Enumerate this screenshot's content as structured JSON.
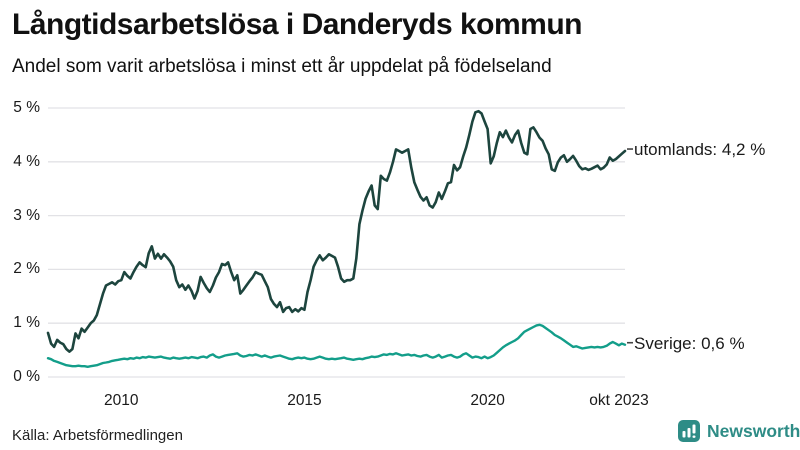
{
  "header": {
    "title": "Långtidsarbetslösa i Danderyds kommun",
    "subtitle": "Andel som varit arbetslösa i minst ett år uppdelat på födelseland"
  },
  "footer": {
    "source": "Källa: Arbetsförmedlingen",
    "brand": "Newsworthy"
  },
  "colors": {
    "utomlands_line": "#1d453e",
    "sverige_line": "#139e8a",
    "grid": "#e2e2e6",
    "text": "#1a1a1a",
    "brand_teal": "#2e8c86"
  },
  "chart_data": {
    "type": "line",
    "title": "Långtidsarbetslösa i Danderyds kommun",
    "subtitle": "Andel som varit arbetslösa i minst ett år uppdelat på födelseland",
    "source": "Källa: Arbetsförmedlingen",
    "x_unit": "monthly, 2008-01 to 2023-10",
    "x_start_year": 2008,
    "months_count": 190,
    "ylim": [
      0,
      5
    ],
    "grid": "horizontal-only",
    "legend_position": "right-end-labels",
    "y_ticks": [
      {
        "label": "0 %",
        "value": 0
      },
      {
        "label": "1 %",
        "value": 1
      },
      {
        "label": "2 %",
        "value": 2
      },
      {
        "label": "3 %",
        "value": 3
      },
      {
        "label": "4 %",
        "value": 4
      },
      {
        "label": "5 %",
        "value": 5
      }
    ],
    "x_ticks": [
      {
        "label": "2010",
        "year": 2010
      },
      {
        "label": "2015",
        "year": 2015
      },
      {
        "label": "2020",
        "year": 2020
      },
      {
        "label": "okt 2023",
        "year": 2023.75
      }
    ],
    "series": [
      {
        "name": "utomlands",
        "label": "utomlands: 4,2 %",
        "last_value": 4.2,
        "color": "#1d453e",
        "stroke_width": 2.6,
        "values": [
          0.82,
          0.62,
          0.56,
          0.69,
          0.64,
          0.61,
          0.52,
          0.47,
          0.52,
          0.81,
          0.72,
          0.9,
          0.84,
          0.92,
          1.0,
          1.05,
          1.15,
          1.35,
          1.55,
          1.7,
          1.73,
          1.76,
          1.72,
          1.78,
          1.8,
          1.95,
          1.88,
          1.83,
          1.95,
          2.05,
          2.13,
          2.08,
          2.04,
          2.3,
          2.43,
          2.2,
          2.29,
          2.2,
          2.28,
          2.22,
          2.15,
          2.05,
          1.8,
          1.67,
          1.72,
          1.62,
          1.7,
          1.6,
          1.46,
          1.6,
          1.86,
          1.75,
          1.65,
          1.58,
          1.7,
          1.85,
          1.95,
          2.1,
          2.08,
          2.13,
          1.95,
          1.8,
          1.89,
          1.55,
          1.62,
          1.7,
          1.78,
          1.85,
          1.95,
          1.92,
          1.9,
          1.78,
          1.67,
          1.45,
          1.36,
          1.3,
          1.39,
          1.21,
          1.28,
          1.3,
          1.21,
          1.26,
          1.22,
          1.28,
          1.25,
          1.58,
          1.8,
          2.05,
          2.17,
          2.26,
          2.17,
          2.22,
          2.28,
          2.25,
          2.22,
          2.05,
          1.83,
          1.77,
          1.8,
          1.8,
          1.83,
          2.2,
          2.84,
          3.09,
          3.31,
          3.45,
          3.56,
          3.19,
          3.12,
          3.74,
          3.68,
          3.65,
          3.8,
          4.0,
          4.23,
          4.2,
          4.17,
          4.2,
          4.23,
          3.89,
          3.62,
          3.48,
          3.35,
          3.28,
          3.34,
          3.19,
          3.15,
          3.25,
          3.43,
          3.31,
          3.45,
          3.6,
          3.62,
          3.94,
          3.84,
          3.9,
          4.1,
          4.27,
          4.5,
          4.75,
          4.92,
          4.94,
          4.9,
          4.75,
          4.61,
          3.97,
          4.1,
          4.35,
          4.55,
          4.46,
          4.58,
          4.45,
          4.36,
          4.5,
          4.58,
          4.35,
          4.17,
          4.14,
          4.61,
          4.64,
          4.55,
          4.45,
          4.39,
          4.25,
          4.14,
          3.86,
          3.83,
          3.99,
          4.08,
          4.12,
          4.0,
          4.05,
          4.11,
          4.02,
          3.92,
          3.86,
          3.88,
          3.85,
          3.87,
          3.9,
          3.93,
          3.86,
          3.89,
          3.95,
          4.08,
          4.02,
          4.05,
          4.1,
          4.15,
          4.2
        ]
      },
      {
        "name": "Sverige",
        "label": "Sverige: 0,6 %",
        "last_value": 0.6,
        "color": "#139e8a",
        "stroke_width": 2.4,
        "values": [
          0.35,
          0.33,
          0.3,
          0.28,
          0.26,
          0.24,
          0.22,
          0.21,
          0.2,
          0.2,
          0.21,
          0.2,
          0.2,
          0.19,
          0.2,
          0.21,
          0.22,
          0.24,
          0.26,
          0.27,
          0.28,
          0.3,
          0.31,
          0.32,
          0.33,
          0.34,
          0.33,
          0.35,
          0.34,
          0.36,
          0.35,
          0.37,
          0.36,
          0.38,
          0.37,
          0.36,
          0.37,
          0.38,
          0.36,
          0.35,
          0.34,
          0.36,
          0.35,
          0.34,
          0.35,
          0.36,
          0.35,
          0.37,
          0.36,
          0.35,
          0.37,
          0.38,
          0.36,
          0.4,
          0.42,
          0.38,
          0.36,
          0.38,
          0.4,
          0.41,
          0.42,
          0.43,
          0.44,
          0.4,
          0.38,
          0.39,
          0.41,
          0.4,
          0.42,
          0.4,
          0.38,
          0.4,
          0.38,
          0.36,
          0.38,
          0.39,
          0.4,
          0.38,
          0.36,
          0.34,
          0.33,
          0.35,
          0.36,
          0.35,
          0.36,
          0.34,
          0.33,
          0.34,
          0.36,
          0.38,
          0.36,
          0.34,
          0.33,
          0.34,
          0.33,
          0.34,
          0.35,
          0.36,
          0.34,
          0.33,
          0.32,
          0.33,
          0.34,
          0.33,
          0.35,
          0.36,
          0.38,
          0.37,
          0.38,
          0.4,
          0.42,
          0.41,
          0.43,
          0.42,
          0.44,
          0.42,
          0.4,
          0.41,
          0.42,
          0.4,
          0.41,
          0.39,
          0.38,
          0.4,
          0.41,
          0.38,
          0.36,
          0.38,
          0.41,
          0.36,
          0.38,
          0.4,
          0.41,
          0.38,
          0.36,
          0.38,
          0.42,
          0.44,
          0.4,
          0.36,
          0.38,
          0.37,
          0.35,
          0.38,
          0.35,
          0.37,
          0.4,
          0.45,
          0.5,
          0.55,
          0.59,
          0.62,
          0.65,
          0.68,
          0.72,
          0.78,
          0.84,
          0.87,
          0.9,
          0.93,
          0.96,
          0.97,
          0.95,
          0.91,
          0.87,
          0.83,
          0.78,
          0.75,
          0.72,
          0.68,
          0.64,
          0.6,
          0.56,
          0.57,
          0.55,
          0.53,
          0.54,
          0.55,
          0.56,
          0.55,
          0.56,
          0.55,
          0.56,
          0.58,
          0.62,
          0.65,
          0.62,
          0.59,
          0.62,
          0.6
        ]
      }
    ]
  }
}
